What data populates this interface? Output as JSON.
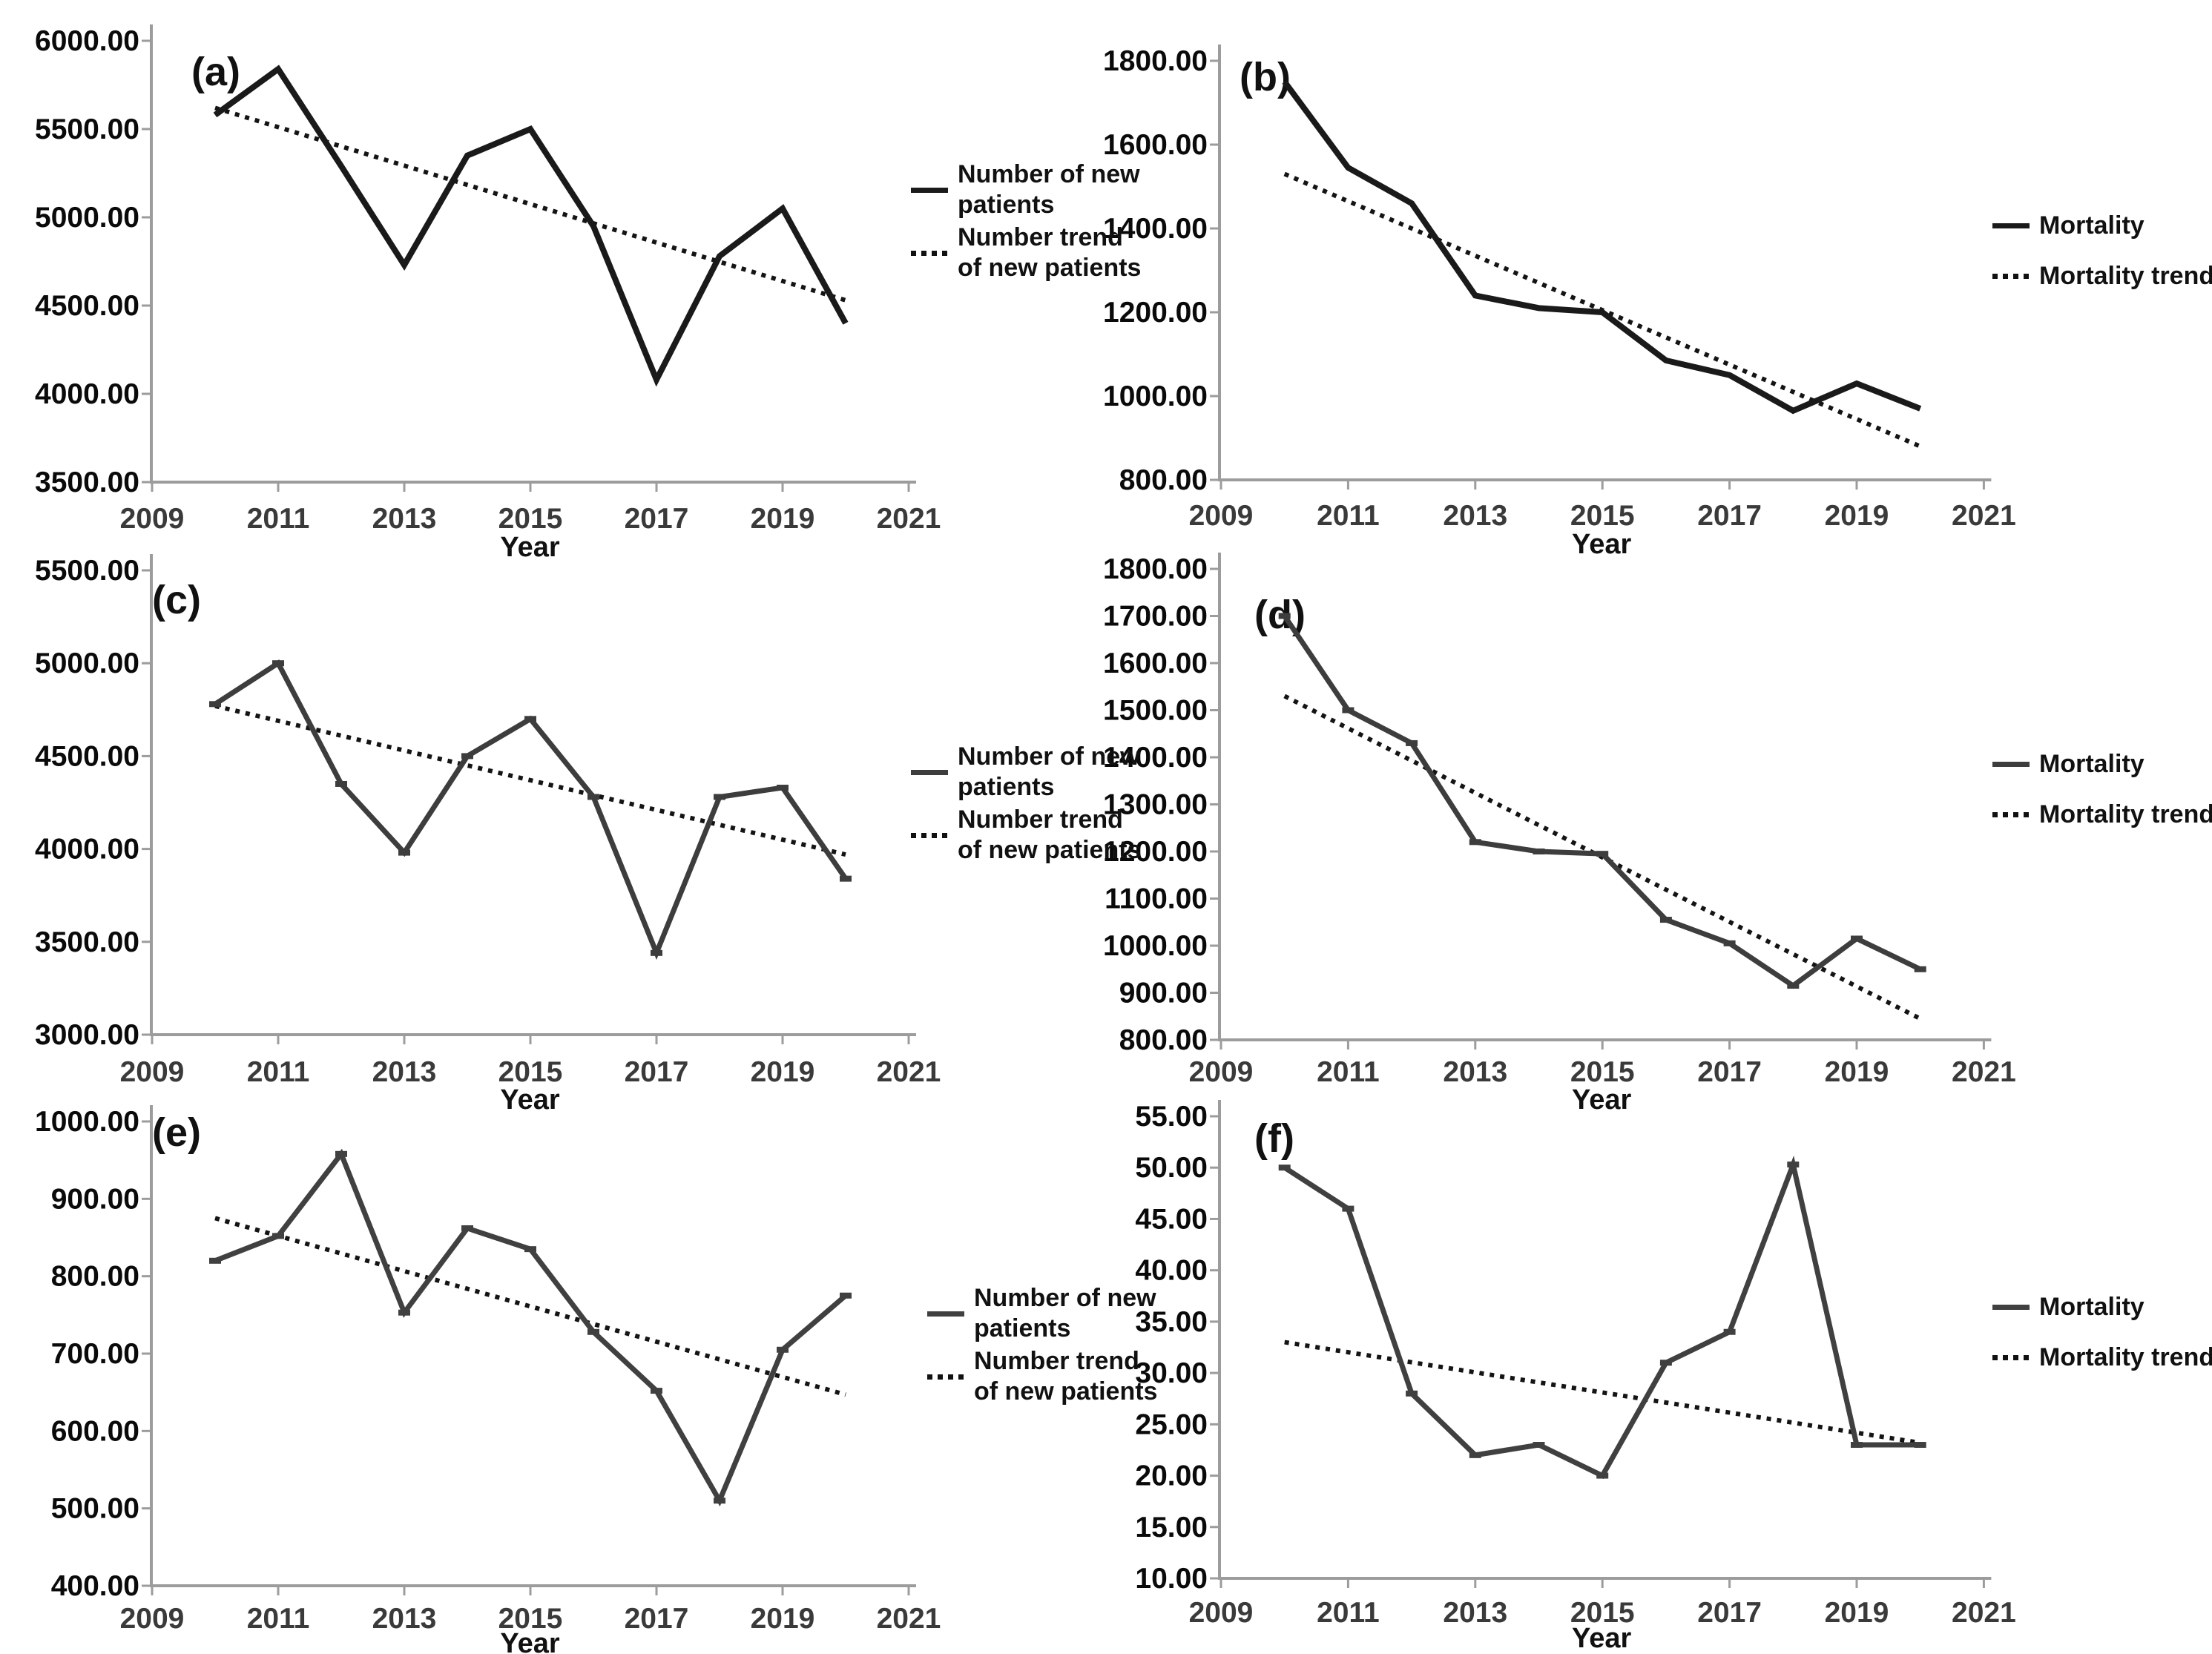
{
  "figure": {
    "xlabel": "Year",
    "x_tick_labels": [
      "2009",
      "2011",
      "2013",
      "2015",
      "2017",
      "2019",
      "2021"
    ],
    "x_tick_values": [
      2009,
      2011,
      2013,
      2015,
      2017,
      2019,
      2021
    ],
    "years": [
      2010,
      2011,
      2012,
      2013,
      2014,
      2015,
      2016,
      2017,
      2018,
      2019,
      2020
    ],
    "colors": {
      "black_line": "#1a1a1a",
      "gray_line": "#3d3d3d",
      "trend_dotted": "#141414",
      "axis": "#9c9c9c"
    }
  },
  "chart_data": [
    {
      "id": "a",
      "panel_label": "(a)",
      "type": "line",
      "xlabel": "Year",
      "x": [
        2010,
        2011,
        2012,
        2013,
        2014,
        2015,
        2016,
        2017,
        2018,
        2019,
        2020
      ],
      "ylim": [
        3500,
        6000
      ],
      "ytick_values": [
        6000,
        5500,
        5000,
        4500,
        4000,
        3500
      ],
      "ytick_labels": [
        "6000.00",
        "5500.00",
        "5000.00",
        "4500.00",
        "4000.00",
        "3500.00"
      ],
      "x_tick_values": [
        2009,
        2011,
        2013,
        2015,
        2017,
        2019,
        2021
      ],
      "x_tick_labels": [
        "2009",
        "2011",
        "2013",
        "2015",
        "2017",
        "2019",
        "2021"
      ],
      "series": [
        {
          "name": "Number of new patients",
          "style": "solid",
          "color": "#1a1a1a",
          "markers": false,
          "values": [
            5580,
            5840,
            5290,
            4730,
            5350,
            5500,
            4950,
            4080,
            4780,
            5050,
            4400
          ]
        },
        {
          "name": "Number trend of new patients",
          "style": "dotted",
          "color": "#141414",
          "trend": true,
          "trend_start": 5620,
          "trend_end": 4530
        }
      ],
      "legend": {
        "items": [
          {
            "lines": [
              "Number of new",
              "patients"
            ],
            "style": "solid"
          },
          {
            "lines": [
              "Number trend",
              "of new patients"
            ],
            "style": "dotted"
          }
        ]
      }
    },
    {
      "id": "b",
      "panel_label": "(b)",
      "type": "line",
      "xlabel": "Year",
      "x": [
        2010,
        2011,
        2012,
        2013,
        2014,
        2015,
        2016,
        2017,
        2018,
        2019,
        2020
      ],
      "ylim": [
        800,
        1800
      ],
      "ytick_values": [
        1800,
        1600,
        1400,
        1200,
        1000,
        800
      ],
      "ytick_labels": [
        "1800.00",
        "1600.00",
        "1400.00",
        "1200.00",
        "1000.00",
        "800.00"
      ],
      "x_tick_values": [
        2009,
        2011,
        2013,
        2015,
        2017,
        2019,
        2021
      ],
      "x_tick_labels": [
        "2009",
        "2011",
        "2013",
        "2015",
        "2017",
        "2019",
        "2021"
      ],
      "series": [
        {
          "name": "Mortality",
          "style": "solid",
          "color": "#1a1a1a",
          "markers": false,
          "values": [
            1750,
            1545,
            1460,
            1240,
            1210,
            1200,
            1085,
            1050,
            965,
            1030,
            970
          ]
        },
        {
          "name": "Mortality trend",
          "style": "dotted",
          "color": "#141414",
          "trend": true,
          "trend_start": 1530,
          "trend_end": 880
        }
      ],
      "legend": {
        "items": [
          {
            "lines": [
              "Mortality"
            ],
            "style": "solid"
          },
          {
            "lines": [
              "Mortality trend"
            ],
            "style": "dotted"
          }
        ]
      }
    },
    {
      "id": "c",
      "panel_label": "(c)",
      "type": "line",
      "xlabel": "Year",
      "x": [
        2010,
        2011,
        2012,
        2013,
        2014,
        2015,
        2016,
        2017,
        2018,
        2019,
        2020
      ],
      "ylim": [
        3000,
        5500
      ],
      "ytick_values": [
        5500,
        5000,
        4500,
        4000,
        3500,
        3000
      ],
      "ytick_labels": [
        "5500.00",
        "5000.00",
        "4500.00",
        "4000.00",
        "3500.00",
        "3000.00"
      ],
      "x_tick_values": [
        2009,
        2011,
        2013,
        2015,
        2017,
        2019,
        2021
      ],
      "x_tick_labels": [
        "2009",
        "2011",
        "2013",
        "2015",
        "2017",
        "2019",
        "2021"
      ],
      "series": [
        {
          "name": "Number of new patients",
          "style": "solid",
          "color": "#3d3d3d",
          "markers": true,
          "values": [
            4780,
            5000,
            4350,
            3980,
            4500,
            4700,
            4280,
            3440,
            4280,
            4330,
            3840
          ]
        },
        {
          "name": "Number trend of new patients",
          "style": "dotted",
          "color": "#141414",
          "trend": true,
          "trend_start": 4770,
          "trend_end": 3970
        }
      ],
      "legend": {
        "items": [
          {
            "lines": [
              "Number of new",
              "patients"
            ],
            "style": "solid"
          },
          {
            "lines": [
              "Number trend",
              "of new patients"
            ],
            "style": "dotted"
          }
        ]
      }
    },
    {
      "id": "d",
      "panel_label": "(d)",
      "type": "line",
      "xlabel": "Year",
      "x": [
        2010,
        2011,
        2012,
        2013,
        2014,
        2015,
        2016,
        2017,
        2018,
        2019,
        2020
      ],
      "ylim": [
        800,
        1800
      ],
      "ytick_values": [
        1800,
        1700,
        1600,
        1500,
        1400,
        1300,
        1200,
        1100,
        1000,
        900,
        800
      ],
      "ytick_labels": [
        "1800.00",
        "1700.00",
        "1600.00",
        "1500.00",
        "1400.00",
        "1300.00",
        "1200.00",
        "1100.00",
        "1000.00",
        "900.00",
        "800.00"
      ],
      "x_tick_values": [
        2009,
        2011,
        2013,
        2015,
        2017,
        2019,
        2021
      ],
      "x_tick_labels": [
        "2009",
        "2011",
        "2013",
        "2015",
        "2017",
        "2019",
        "2021"
      ],
      "series": [
        {
          "name": "Mortality",
          "style": "solid",
          "color": "#3d3d3d",
          "markers": true,
          "values": [
            1700,
            1500,
            1430,
            1220,
            1200,
            1195,
            1055,
            1005,
            915,
            1015,
            950
          ]
        },
        {
          "name": "Mortality trend",
          "style": "dotted",
          "color": "#141414",
          "trend": true,
          "trend_start": 1530,
          "trend_end": 845
        }
      ],
      "legend": {
        "items": [
          {
            "lines": [
              "Mortality"
            ],
            "style": "solid"
          },
          {
            "lines": [
              "Mortality trend"
            ],
            "style": "dotted"
          }
        ]
      }
    },
    {
      "id": "e",
      "panel_label": "(e)",
      "type": "line",
      "xlabel": "Year",
      "x": [
        2010,
        2011,
        2012,
        2013,
        2014,
        2015,
        2016,
        2017,
        2018,
        2019,
        2020
      ],
      "ylim": [
        400,
        1000
      ],
      "ytick_values": [
        1000,
        900,
        800,
        700,
        600,
        500,
        400
      ],
      "ytick_labels": [
        "1000.00",
        "900.00",
        "800.00",
        "700.00",
        "600.00",
        "500.00",
        "400.00"
      ],
      "x_tick_values": [
        2009,
        2011,
        2013,
        2015,
        2017,
        2019,
        2021
      ],
      "x_tick_labels": [
        "2009",
        "2011",
        "2013",
        "2015",
        "2017",
        "2019",
        "2021"
      ],
      "series": [
        {
          "name": "Number of new patients",
          "style": "solid",
          "color": "#404040",
          "markers": true,
          "values": [
            820,
            852,
            958,
            753,
            862,
            835,
            728,
            652,
            510,
            705,
            775
          ]
        },
        {
          "name": "Number trend of new patients",
          "style": "dotted",
          "color": "#141414",
          "trend": true,
          "trend_start": 875,
          "trend_end": 647
        }
      ],
      "legend": {
        "items": [
          {
            "lines": [
              "Number of new",
              "patients"
            ],
            "style": "solid"
          },
          {
            "lines": [
              "Number trend",
              "of new patients"
            ],
            "style": "dotted"
          }
        ]
      }
    },
    {
      "id": "f",
      "panel_label": "(f)",
      "type": "line",
      "xlabel": "Year",
      "x": [
        2010,
        2011,
        2012,
        2013,
        2014,
        2015,
        2016,
        2017,
        2018,
        2019,
        2020
      ],
      "ylim": [
        10,
        55
      ],
      "ytick_values": [
        55,
        50,
        45,
        40,
        35,
        30,
        25,
        20,
        15,
        10
      ],
      "ytick_labels": [
        "55.00",
        "50.00",
        "45.00",
        "40.00",
        "35.00",
        "30.00",
        "25.00",
        "20.00",
        "15.00",
        "10.00"
      ],
      "x_tick_values": [
        2009,
        2011,
        2013,
        2015,
        2017,
        2019,
        2021
      ],
      "x_tick_labels": [
        "2009",
        "2011",
        "2013",
        "2015",
        "2017",
        "2019",
        "2021"
      ],
      "series": [
        {
          "name": "Mortality",
          "style": "solid",
          "color": "#404040",
          "markers": true,
          "values": [
            50,
            46,
            28,
            22,
            23,
            20,
            31,
            34,
            50.3,
            23,
            23
          ]
        },
        {
          "name": "Mortality trend",
          "style": "dotted",
          "color": "#141414",
          "trend": true,
          "trend_start": 33,
          "trend_end": 23.2
        }
      ],
      "legend": {
        "items": [
          {
            "lines": [
              "Mortality"
            ],
            "style": "solid"
          },
          {
            "lines": [
              "Mortality trend"
            ],
            "style": "dotted"
          }
        ]
      }
    }
  ]
}
